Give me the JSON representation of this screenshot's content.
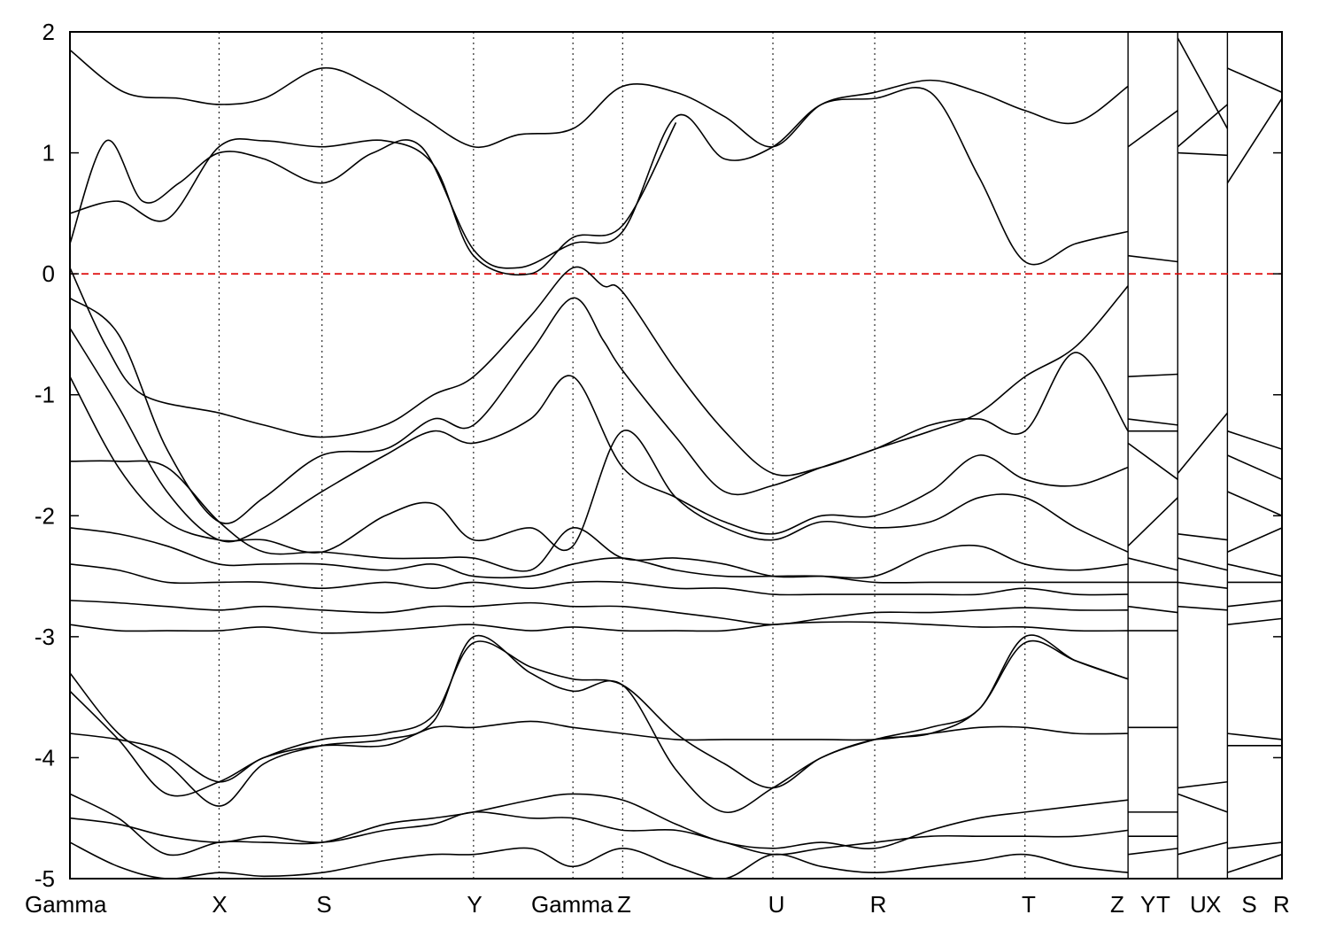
{
  "chart_data": {
    "type": "line",
    "title": "",
    "xlabel": "",
    "ylabel": "",
    "ylim": [
      -5,
      2
    ],
    "yticks": [
      2,
      1,
      0,
      -1,
      -2,
      -3,
      -4,
      -5
    ],
    "ytick_labels": [
      "2",
      "1",
      "0",
      "-1",
      "-2",
      "-3",
      "-4",
      "-5"
    ],
    "grid": "vertical dotted lines at high-symmetry points",
    "fermi_level": {
      "y": 0,
      "color": "#dd0000",
      "style": "dashed"
    },
    "kpoint_labels": [
      "Gamma",
      "X",
      "S",
      "Y",
      "Gamma",
      "Z",
      "U",
      "R",
      "T",
      "Z",
      "Y",
      "T",
      "U",
      "X",
      "S",
      "R"
    ],
    "kpoint_positions": [
      0,
      1.23,
      2.08,
      3.33,
      4.15,
      4.56,
      5.8,
      6.64,
      7.88,
      8.73,
      8.73,
      9.14,
      9.14,
      9.55,
      9.55,
      10.0
    ],
    "segment_breaks": [
      8.73,
      9.14,
      9.55
    ],
    "line_color": "#000000",
    "series": [
      {
        "x": [
          0,
          0.45,
          0.9,
          1.23,
          1.6,
          2.08,
          2.5,
          2.9,
          3.33,
          3.7,
          4.15,
          4.56,
          5.0,
          5.4,
          5.8,
          6.2,
          6.64,
          7.1,
          7.5,
          7.88,
          8.3,
          8.73
        ],
        "y": [
          1.85,
          1.5,
          1.45,
          1.4,
          1.45,
          1.7,
          1.55,
          1.3,
          1.05,
          1.15,
          1.2,
          1.55,
          1.5,
          1.3,
          1.05,
          1.4,
          1.5,
          1.6,
          1.5,
          1.35,
          1.25,
          1.55
        ]
      },
      {
        "x": [
          0,
          0.3,
          0.6,
          0.9,
          1.23,
          1.6,
          2.08,
          2.5,
          2.9,
          3.33,
          3.7,
          4.15,
          4.56,
          5.0,
          5.4,
          5.8,
          6.2,
          6.64,
          7.1,
          7.5,
          7.88,
          8.3,
          8.73
        ],
        "y": [
          0.25,
          1.1,
          0.6,
          0.75,
          1.0,
          0.95,
          0.75,
          1.0,
          1.05,
          0.2,
          0.05,
          0.25,
          0.35,
          1.3,
          0.95,
          1.05,
          1.4,
          1.45,
          1.5,
          0.8,
          0.1,
          0.25,
          0.35
        ]
      },
      {
        "x": [
          0,
          0.4,
          0.8,
          1.23,
          1.6,
          2.08,
          2.6,
          3.0,
          3.33,
          3.8,
          4.15,
          4.56,
          5.0
        ],
        "y": [
          0.5,
          0.6,
          0.45,
          1.05,
          1.1,
          1.05,
          1.1,
          0.9,
          0.15,
          0.0,
          0.3,
          0.4,
          1.25
        ]
      },
      {
        "x": [
          0,
          0.3,
          0.6,
          1.23,
          1.6,
          2.08,
          2.6,
          3.0,
          3.33,
          3.8,
          4.15,
          4.4,
          4.56,
          5.0,
          5.4,
          5.8,
          6.2,
          6.64,
          7.1,
          7.5,
          7.88,
          8.3,
          8.73
        ],
        "y": [
          0.05,
          -0.6,
          -1.0,
          -1.15,
          -1.25,
          -1.35,
          -1.25,
          -1.0,
          -0.85,
          -0.35,
          0.05,
          -0.1,
          -0.15,
          -0.8,
          -1.3,
          -1.65,
          -1.6,
          -1.45,
          -1.3,
          -1.15,
          -0.85,
          -0.6,
          -0.1
        ]
      },
      {
        "x": [
          0,
          0.4,
          0.8,
          1.23,
          1.6,
          2.08,
          2.6,
          3.0,
          3.33,
          3.8,
          4.15,
          4.4,
          4.56,
          5.0,
          5.4,
          5.8,
          6.2,
          6.64,
          7.1,
          7.5,
          7.88,
          8.3,
          8.73
        ],
        "y": [
          -0.2,
          -0.5,
          -1.45,
          -2.05,
          -1.85,
          -1.5,
          -1.45,
          -1.2,
          -1.25,
          -0.65,
          -0.2,
          -0.55,
          -0.8,
          -1.35,
          -1.8,
          -1.75,
          -1.6,
          -1.45,
          -1.25,
          -1.2,
          -1.3,
          -0.65,
          -1.3
        ]
      },
      {
        "x": [
          0,
          0.4,
          0.8,
          1.23,
          1.6,
          2.08,
          2.6,
          3.0,
          3.33,
          3.8,
          4.15,
          4.56,
          5.0,
          5.4,
          5.8,
          6.2,
          6.64,
          7.1,
          7.5,
          7.88,
          8.3,
          8.73
        ],
        "y": [
          -0.45,
          -1.1,
          -1.8,
          -2.2,
          -2.1,
          -1.8,
          -1.5,
          -1.3,
          -1.4,
          -1.2,
          -0.85,
          -1.6,
          -1.85,
          -2.05,
          -2.15,
          -2.0,
          -2.0,
          -1.8,
          -1.5,
          -1.7,
          -1.75,
          -1.6
        ]
      },
      {
        "x": [
          0,
          0.4,
          0.8,
          1.23,
          1.6,
          2.08,
          2.6,
          3.0,
          3.33,
          3.8,
          4.15,
          4.56,
          5.0,
          5.4,
          5.8,
          6.2,
          6.64,
          7.1,
          7.5,
          7.88,
          8.3,
          8.73
        ],
        "y": [
          -0.85,
          -1.6,
          -2.05,
          -2.2,
          -2.2,
          -2.3,
          -2.0,
          -1.9,
          -2.2,
          -2.1,
          -2.25,
          -1.3,
          -1.85,
          -2.1,
          -2.2,
          -2.05,
          -2.1,
          -2.05,
          -1.85,
          -1.85,
          -2.1,
          -2.3
        ]
      },
      {
        "x": [
          0,
          0.4,
          0.8,
          1.23,
          1.6,
          2.08,
          2.6,
          3.0,
          3.33,
          3.8,
          4.15,
          4.56,
          5.0,
          5.4,
          5.8,
          6.2,
          6.64,
          7.1,
          7.5,
          7.88,
          8.3,
          8.73
        ],
        "y": [
          -1.55,
          -1.55,
          -1.6,
          -2.05,
          -2.3,
          -2.3,
          -2.35,
          -2.35,
          -2.35,
          -2.45,
          -2.1,
          -2.35,
          -2.35,
          -2.4,
          -2.5,
          -2.5,
          -2.5,
          -2.3,
          -2.25,
          -2.4,
          -2.45,
          -2.4
        ]
      },
      {
        "x": [
          0,
          0.4,
          0.8,
          1.23,
          1.6,
          2.08,
          2.6,
          3.0,
          3.33,
          3.8,
          4.15,
          4.56,
          5.0,
          5.4,
          5.8,
          6.2,
          6.64,
          7.1,
          7.5,
          7.88,
          8.3,
          8.73
        ],
        "y": [
          -2.1,
          -2.15,
          -2.25,
          -2.4,
          -2.4,
          -2.4,
          -2.45,
          -2.4,
          -2.5,
          -2.5,
          -2.4,
          -2.35,
          -2.45,
          -2.5,
          -2.5,
          -2.5,
          -2.55,
          -2.55,
          -2.55,
          -2.55,
          -2.55,
          -2.55
        ]
      },
      {
        "x": [
          0,
          0.4,
          0.8,
          1.23,
          1.6,
          2.08,
          2.6,
          3.0,
          3.33,
          3.8,
          4.15,
          4.56,
          5.0,
          5.4,
          5.8,
          6.2,
          6.64,
          7.1,
          7.5,
          7.88,
          8.3,
          8.73
        ],
        "y": [
          -2.4,
          -2.45,
          -2.55,
          -2.55,
          -2.55,
          -2.6,
          -2.55,
          -2.6,
          -2.55,
          -2.6,
          -2.55,
          -2.55,
          -2.6,
          -2.6,
          -2.65,
          -2.65,
          -2.65,
          -2.65,
          -2.65,
          -2.6,
          -2.65,
          -2.65
        ]
      },
      {
        "x": [
          0,
          0.4,
          0.8,
          1.23,
          1.6,
          2.08,
          2.6,
          3.0,
          3.33,
          3.8,
          4.15,
          4.56,
          5.0,
          5.4,
          5.8,
          6.2,
          6.64,
          7.1,
          7.5,
          7.88,
          8.3,
          8.73
        ],
        "y": [
          -2.7,
          -2.72,
          -2.75,
          -2.78,
          -2.75,
          -2.78,
          -2.8,
          -2.75,
          -2.75,
          -2.72,
          -2.75,
          -2.75,
          -2.8,
          -2.85,
          -2.9,
          -2.85,
          -2.8,
          -2.8,
          -2.78,
          -2.76,
          -2.78,
          -2.78
        ]
      },
      {
        "x": [
          0,
          0.4,
          0.8,
          1.23,
          1.6,
          2.08,
          2.6,
          3.0,
          3.33,
          3.8,
          4.15,
          4.56,
          5.0,
          5.4,
          5.8,
          6.2,
          6.64,
          7.1,
          7.5,
          7.88,
          8.3,
          8.73
        ],
        "y": [
          -2.9,
          -2.95,
          -2.95,
          -2.95,
          -2.92,
          -2.97,
          -2.95,
          -2.92,
          -2.9,
          -2.95,
          -2.92,
          -2.95,
          -2.95,
          -2.95,
          -2.9,
          -2.88,
          -2.88,
          -2.9,
          -2.92,
          -2.92,
          -2.95,
          -2.95
        ]
      },
      {
        "x": [
          0,
          0.4,
          0.8,
          1.23,
          1.6,
          2.08,
          2.6,
          3.0,
          3.33,
          3.8,
          4.15,
          4.56,
          5.0,
          5.4,
          5.8,
          6.2,
          6.64,
          7.1,
          7.5,
          7.88,
          8.3,
          8.73
        ],
        "y": [
          -3.3,
          -3.8,
          -4.05,
          -4.4,
          -4.05,
          -3.9,
          -3.85,
          -3.7,
          -3.0,
          -3.3,
          -3.45,
          -3.4,
          -4.1,
          -4.45,
          -4.25,
          -4.0,
          -3.85,
          -3.75,
          -3.6,
          -3.0,
          -3.2,
          -3.35
        ]
      },
      {
        "x": [
          0,
          0.4,
          0.8,
          1.23,
          1.6,
          2.08,
          2.6,
          3.0,
          3.33,
          3.8,
          4.15,
          4.56,
          5.0,
          5.4,
          5.8,
          6.2,
          6.64,
          7.1,
          7.5,
          7.88,
          8.3,
          8.73
        ],
        "y": [
          -3.45,
          -3.85,
          -4.3,
          -4.2,
          -4.0,
          -3.85,
          -3.8,
          -3.65,
          -3.05,
          -3.25,
          -3.35,
          -3.4,
          -3.8,
          -4.05,
          -4.25,
          -4.0,
          -3.85,
          -3.8,
          -3.6,
          -3.05,
          -3.2,
          -3.35
        ]
      },
      {
        "x": [
          0,
          0.4,
          0.8,
          1.23,
          1.6,
          2.08,
          2.6,
          3.0,
          3.33,
          3.8,
          4.15,
          4.56,
          5.0,
          5.4,
          5.8,
          6.2,
          6.64,
          7.1,
          7.5,
          7.88,
          8.3,
          8.73
        ],
        "y": [
          -3.8,
          -3.85,
          -3.95,
          -4.2,
          -4.0,
          -3.9,
          -3.9,
          -3.75,
          -3.75,
          -3.7,
          -3.75,
          -3.8,
          -3.85,
          -3.85,
          -3.85,
          -3.85,
          -3.85,
          -3.8,
          -3.75,
          -3.75,
          -3.8,
          -3.8
        ]
      },
      {
        "x": [
          0,
          0.4,
          0.8,
          1.23,
          1.6,
          2.08,
          2.6,
          3.0,
          3.33,
          3.8,
          4.15,
          4.56,
          5.0,
          5.4,
          5.8,
          6.2,
          6.64,
          7.1,
          7.5,
          7.88,
          8.3,
          8.73
        ],
        "y": [
          -4.3,
          -4.5,
          -4.8,
          -4.7,
          -4.7,
          -4.7,
          -4.55,
          -4.5,
          -4.45,
          -4.35,
          -4.3,
          -4.35,
          -4.55,
          -4.7,
          -4.75,
          -4.7,
          -4.75,
          -4.6,
          -4.5,
          -4.45,
          -4.4,
          -4.35
        ]
      },
      {
        "x": [
          0,
          0.4,
          0.8,
          1.23,
          1.6,
          2.08,
          2.6,
          3.0,
          3.33,
          3.8,
          4.15,
          4.56,
          5.0,
          5.4,
          5.8,
          6.2,
          6.64,
          7.1,
          7.5,
          7.88,
          8.3,
          8.73
        ],
        "y": [
          -4.5,
          -4.55,
          -4.65,
          -4.7,
          -4.65,
          -4.7,
          -4.6,
          -4.55,
          -4.45,
          -4.5,
          -4.5,
          -4.6,
          -4.6,
          -4.7,
          -4.8,
          -4.75,
          -4.7,
          -4.65,
          -4.65,
          -4.65,
          -4.65,
          -4.6
        ]
      },
      {
        "x": [
          0,
          0.4,
          0.8,
          1.23,
          1.6,
          2.08,
          2.6,
          3.0,
          3.33,
          3.8,
          4.15,
          4.56,
          5.0,
          5.4,
          5.8,
          6.2,
          6.64,
          7.1,
          7.5,
          7.88,
          8.3,
          8.73
        ],
        "y": [
          -4.7,
          -4.9,
          -5.0,
          -4.95,
          -4.98,
          -4.95,
          -4.85,
          -4.8,
          -4.8,
          -4.75,
          -4.9,
          -4.75,
          -4.9,
          -5.0,
          -4.8,
          -4.9,
          -4.95,
          -4.9,
          -4.85,
          -4.8,
          -4.9,
          -4.95
        ]
      }
    ],
    "side_segments": [
      {
        "x": [
          8.73,
          9.14
        ],
        "y": [
          1.05,
          1.35
        ]
      },
      {
        "x": [
          8.73,
          9.14
        ],
        "y": [
          0.15,
          0.1
        ]
      },
      {
        "x": [
          8.73,
          9.14
        ],
        "y": [
          -0.85,
          -0.83
        ]
      },
      {
        "x": [
          8.73,
          9.14
        ],
        "y": [
          -1.2,
          -1.25
        ]
      },
      {
        "x": [
          8.73,
          9.14
        ],
        "y": [
          -1.3,
          -1.3
        ]
      },
      {
        "x": [
          8.73,
          9.14
        ],
        "y": [
          -1.4,
          -1.7
        ]
      },
      {
        "x": [
          8.73,
          9.14
        ],
        "y": [
          -2.25,
          -1.85
        ]
      },
      {
        "x": [
          8.73,
          9.14
        ],
        "y": [
          -2.35,
          -2.45
        ]
      },
      {
        "x": [
          8.73,
          9.14
        ],
        "y": [
          -2.55,
          -2.55
        ]
      },
      {
        "x": [
          8.73,
          9.14
        ],
        "y": [
          -2.75,
          -2.8
        ]
      },
      {
        "x": [
          8.73,
          9.14
        ],
        "y": [
          -2.95,
          -2.95
        ]
      },
      {
        "x": [
          8.73,
          9.14
        ],
        "y": [
          -3.75,
          -3.75
        ]
      },
      {
        "x": [
          8.73,
          9.14
        ],
        "y": [
          -4.45,
          -4.45
        ]
      },
      {
        "x": [
          8.73,
          9.14
        ],
        "y": [
          -4.65,
          -4.65
        ]
      },
      {
        "x": [
          8.73,
          9.14
        ],
        "y": [
          -4.8,
          -4.75
        ]
      },
      {
        "x": [
          9.14,
          9.55
        ],
        "y": [
          1.95,
          1.2
        ]
      },
      {
        "x": [
          9.14,
          9.55
        ],
        "y": [
          1.05,
          1.4
        ]
      },
      {
        "x": [
          9.14,
          9.55
        ],
        "y": [
          1.0,
          0.98
        ]
      },
      {
        "x": [
          9.14,
          9.55
        ],
        "y": [
          -1.65,
          -1.15
        ]
      },
      {
        "x": [
          9.14,
          9.55
        ],
        "y": [
          -2.15,
          -2.2
        ]
      },
      {
        "x": [
          9.14,
          9.55
        ],
        "y": [
          -2.35,
          -2.45
        ]
      },
      {
        "x": [
          9.14,
          9.55
        ],
        "y": [
          -2.55,
          -2.6
        ]
      },
      {
        "x": [
          9.14,
          9.55
        ],
        "y": [
          -2.75,
          -2.78
        ]
      },
      {
        "x": [
          9.14,
          9.55
        ],
        "y": [
          -4.25,
          -4.2
        ]
      },
      {
        "x": [
          9.14,
          9.55
        ],
        "y": [
          -4.3,
          -4.45
        ]
      },
      {
        "x": [
          9.14,
          9.55
        ],
        "y": [
          -4.8,
          -4.7
        ]
      },
      {
        "x": [
          9.55,
          10.0
        ],
        "y": [
          1.7,
          1.5
        ]
      },
      {
        "x": [
          9.55,
          10.0
        ],
        "y": [
          0.75,
          1.45
        ]
      },
      {
        "x": [
          9.55,
          10.0
        ],
        "y": [
          -1.3,
          -1.45
        ]
      },
      {
        "x": [
          9.55,
          10.0
        ],
        "y": [
          -1.5,
          -1.7
        ]
      },
      {
        "x": [
          9.55,
          10.0
        ],
        "y": [
          -1.8,
          -2.0
        ]
      },
      {
        "x": [
          9.55,
          10.0
        ],
        "y": [
          -2.3,
          -2.1
        ]
      },
      {
        "x": [
          9.55,
          10.0
        ],
        "y": [
          -2.4,
          -2.5
        ]
      },
      {
        "x": [
          9.55,
          10.0
        ],
        "y": [
          -2.55,
          -2.55
        ]
      },
      {
        "x": [
          9.55,
          10.0
        ],
        "y": [
          -2.75,
          -2.7
        ]
      },
      {
        "x": [
          9.55,
          10.0
        ],
        "y": [
          -2.9,
          -2.85
        ]
      },
      {
        "x": [
          9.55,
          10.0
        ],
        "y": [
          -3.8,
          -3.85
        ]
      },
      {
        "x": [
          9.55,
          10.0
        ],
        "y": [
          -3.9,
          -3.9
        ]
      },
      {
        "x": [
          9.55,
          10.0
        ],
        "y": [
          -4.75,
          -4.7
        ]
      },
      {
        "x": [
          9.55,
          10.0
        ],
        "y": [
          -4.95,
          -4.8
        ]
      }
    ]
  }
}
